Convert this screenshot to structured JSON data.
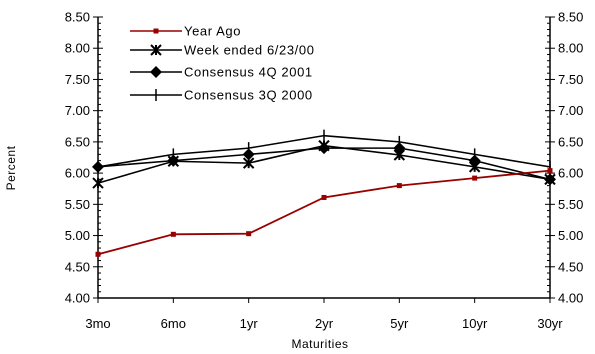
{
  "chart_data": {
    "type": "line",
    "title": "",
    "xlabel": "Maturities",
    "ylabel": "Percent",
    "categories": [
      "3mo",
      "6mo",
      "1yr",
      "2yr",
      "5yr",
      "10yr",
      "30yr"
    ],
    "ylim": [
      4.0,
      8.5
    ],
    "y_ticks": [
      "4.00",
      "4.50",
      "5.00",
      "5.50",
      "6.00",
      "6.50",
      "7.00",
      "7.50",
      "8.00",
      "8.50"
    ],
    "right_axis": true,
    "grid": false,
    "legend_position": "top-left",
    "series": [
      {
        "name": "Year Ago",
        "color": "#990000",
        "marker": "square",
        "values": [
          4.7,
          5.02,
          5.03,
          5.61,
          5.8,
          5.92,
          6.04
        ]
      },
      {
        "name": "Week ended 6/23/00",
        "color": "#000000",
        "marker": "star",
        "values": [
          5.84,
          6.19,
          6.16,
          6.44,
          6.29,
          6.1,
          5.9
        ]
      },
      {
        "name": "Consensus 4Q 2001",
        "color": "#000000",
        "marker": "diamond",
        "values": [
          6.1,
          6.2,
          6.3,
          6.4,
          6.4,
          6.2,
          5.9
        ]
      },
      {
        "name": "Consensus 3Q 2000",
        "color": "#000000",
        "marker": "plus",
        "values": [
          6.1,
          6.3,
          6.4,
          6.6,
          6.5,
          6.3,
          6.1
        ]
      }
    ]
  }
}
